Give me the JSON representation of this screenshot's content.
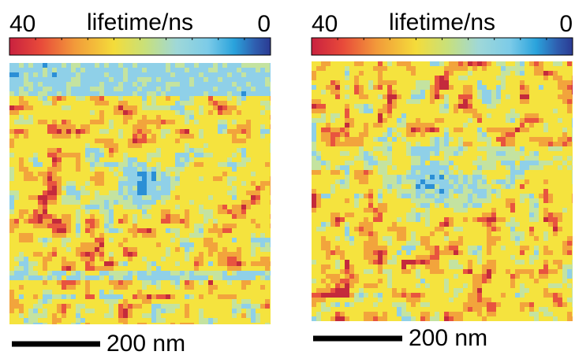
{
  "panels": [
    {
      "colorbar": {
        "label": "lifetime/ns",
        "ticks": [
          "40",
          "0"
        ]
      },
      "scale_bar": "200 nm"
    },
    {
      "colorbar": {
        "label": "lifetime/ns",
        "ticks": [
          "40",
          "0"
        ]
      },
      "scale_bar": "200 nm"
    }
  ]
}
